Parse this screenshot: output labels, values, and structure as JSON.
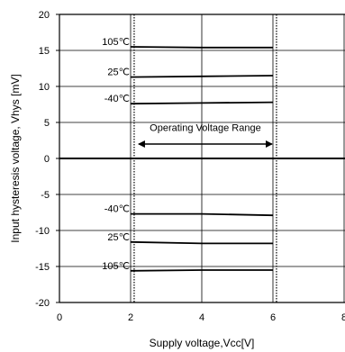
{
  "chart_data": {
    "type": "line",
    "title": "",
    "xlabel": "Supply voltage,Vcc[V]",
    "ylabel": "Input hysteresis voltage, Vhys [mV]",
    "xlim": [
      0,
      8
    ],
    "ylim": [
      -20,
      20
    ],
    "x_ticks": [
      0,
      2,
      4,
      6,
      8
    ],
    "y_ticks": [
      20,
      15,
      10,
      5,
      0,
      -5,
      -10,
      -15,
      -20
    ],
    "grid": true,
    "series": [
      {
        "name": "105℃",
        "x": [
          2,
          4,
          6
        ],
        "y": [
          15.5,
          15.4,
          15.4
        ]
      },
      {
        "name": "25℃",
        "x": [
          2,
          4,
          6
        ],
        "y": [
          11.3,
          11.4,
          11.5
        ]
      },
      {
        "name": "-40℃",
        "x": [
          2,
          4,
          6
        ],
        "y": [
          7.6,
          7.7,
          7.8
        ]
      },
      {
        "name": "-40℃",
        "x": [
          2,
          4,
          6
        ],
        "y": [
          -7.7,
          -7.7,
          -7.9
        ]
      },
      {
        "name": "25℃",
        "x": [
          2,
          4,
          6
        ],
        "y": [
          -11.6,
          -11.8,
          -11.8
        ]
      },
      {
        "name": "105℃",
        "x": [
          2,
          4,
          6
        ],
        "y": [
          -15.6,
          -15.5,
          -15.5
        ]
      }
    ],
    "reference_lines_x": [
      2.1,
      6.1
    ],
    "annotation": "Operating Voltage Range",
    "annotation_range": [
      2.1,
      6.1
    ],
    "line_color": "#000000"
  }
}
